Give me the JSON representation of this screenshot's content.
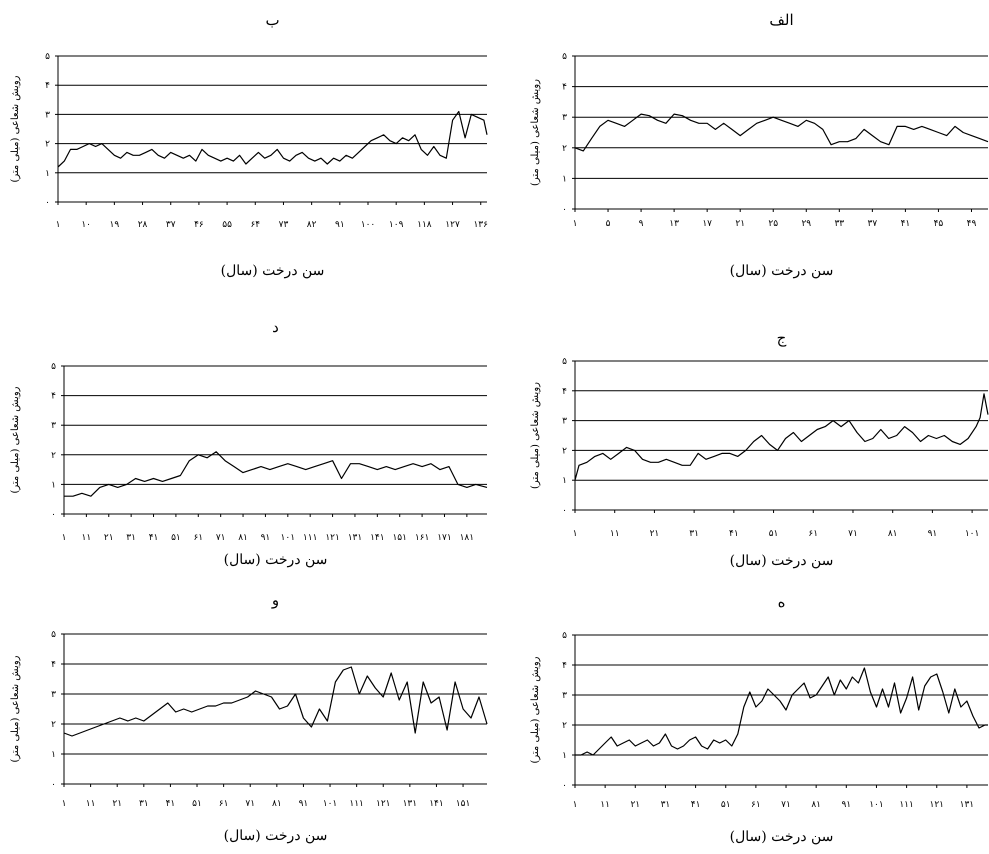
{
  "chart_data": [
    {
      "id": "alef",
      "type": "line",
      "title": "الف",
      "xlabel": "سن درخت (سال)",
      "ylabel": "رویش شعاعی (میلی متر)",
      "ylim": [
        0,
        5
      ],
      "yticks": [
        "۰",
        "۱",
        "۲",
        "۳",
        "۴",
        "۵"
      ],
      "xlim": [
        1,
        51
      ],
      "xticks": [
        "۱",
        "۵",
        "۹",
        "۱۳",
        "۱۷",
        "۲۱",
        "۲۵",
        "۲۹",
        "۳۳",
        "۳۷",
        "۴۱",
        "۴۵",
        "۴۹"
      ],
      "xtick_start": 1,
      "xtick_step": 4,
      "grid": true,
      "x": [
        1,
        2,
        3,
        4,
        5,
        6,
        7,
        8,
        9,
        10,
        11,
        12,
        13,
        14,
        15,
        16,
        17,
        18,
        19,
        20,
        21,
        22,
        23,
        24,
        25,
        26,
        27,
        28,
        29,
        30,
        31,
        32,
        33,
        34,
        35,
        36,
        37,
        38,
        39,
        40,
        41,
        42,
        43,
        44,
        45,
        46,
        47,
        48,
        49,
        50,
        51
      ],
      "values": [
        2.0,
        1.9,
        2.3,
        2.7,
        2.9,
        2.8,
        2.7,
        2.9,
        3.1,
        3.05,
        2.9,
        2.8,
        3.1,
        3.05,
        2.9,
        2.8,
        2.8,
        2.6,
        2.8,
        2.6,
        2.4,
        2.6,
        2.8,
        2.9,
        3.0,
        2.9,
        2.8,
        2.7,
        2.9,
        2.8,
        2.6,
        2.1,
        2.2,
        2.2,
        2.3,
        2.6,
        2.4,
        2.2,
        2.1,
        2.7,
        2.7,
        2.6,
        2.7,
        2.6,
        2.5,
        2.4,
        2.7,
        2.5,
        2.4,
        2.3,
        2.2
      ]
    },
    {
      "id": "be",
      "type": "line",
      "title": "ب",
      "xlabel": "سن درخت (سال)",
      "ylabel": "رویش شعاعی (میلی متر)",
      "ylim": [
        0,
        5
      ],
      "yticks": [
        "۰",
        "۱",
        "۲",
        "۳",
        "۴",
        "۵"
      ],
      "xlim": [
        1,
        138
      ],
      "xticks": [
        "۱",
        "۱۰",
        "۱۹",
        "۲۸",
        "۳۷",
        "۴۶",
        "۵۵",
        "۶۴",
        "۷۳",
        "۸۲",
        "۹۱",
        "۱۰۰",
        "۱۰۹",
        "۱۱۸",
        "۱۲۷",
        "۱۳۶"
      ],
      "xtick_start": 1,
      "xtick_step": 9,
      "grid": true,
      "x": [
        1,
        3,
        5,
        7,
        9,
        11,
        13,
        15,
        17,
        19,
        21,
        23,
        25,
        27,
        29,
        31,
        33,
        35,
        37,
        39,
        41,
        43,
        45,
        47,
        49,
        51,
        53,
        55,
        57,
        59,
        61,
        63,
        65,
        67,
        69,
        71,
        73,
        75,
        77,
        79,
        81,
        83,
        85,
        87,
        89,
        91,
        93,
        95,
        97,
        99,
        101,
        103,
        105,
        107,
        109,
        111,
        113,
        115,
        117,
        119,
        121,
        123,
        125,
        127,
        129,
        131,
        133,
        135,
        137,
        138
      ],
      "values": [
        1.2,
        1.4,
        1.8,
        1.8,
        1.9,
        2.0,
        1.9,
        2.0,
        1.8,
        1.6,
        1.5,
        1.7,
        1.6,
        1.6,
        1.7,
        1.8,
        1.6,
        1.5,
        1.7,
        1.6,
        1.5,
        1.6,
        1.4,
        1.8,
        1.6,
        1.5,
        1.4,
        1.5,
        1.4,
        1.6,
        1.3,
        1.5,
        1.7,
        1.5,
        1.6,
        1.8,
        1.5,
        1.4,
        1.6,
        1.7,
        1.5,
        1.4,
        1.5,
        1.3,
        1.5,
        1.4,
        1.6,
        1.5,
        1.7,
        1.9,
        2.1,
        2.2,
        2.3,
        2.1,
        2.0,
        2.2,
        2.1,
        2.3,
        1.8,
        1.6,
        1.9,
        1.6,
        1.5,
        2.8,
        3.1,
        2.2,
        3.0,
        2.9,
        2.8,
        2.3
      ]
    },
    {
      "id": "jim",
      "type": "line",
      "title": "ج",
      "xlabel": "سن درخت (سال)",
      "ylabel": "رویش شعاعی (میلی متر)",
      "ylim": [
        0,
        5
      ],
      "yticks": [
        "۰",
        "۱",
        "۲",
        "۳",
        "۴",
        "۵"
      ],
      "xlim": [
        1,
        105
      ],
      "xticks": [
        "۱",
        "۱۱",
        "۲۱",
        "۳۱",
        "۴۱",
        "۵۱",
        "۶۱",
        "۷۱",
        "۸۱",
        "۹۱",
        "۱۰۱"
      ],
      "xtick_start": 1,
      "xtick_step": 10,
      "grid": true,
      "x": [
        1,
        2,
        4,
        6,
        8,
        10,
        12,
        14,
        16,
        18,
        20,
        22,
        24,
        26,
        28,
        30,
        32,
        34,
        36,
        38,
        40,
        42,
        44,
        46,
        48,
        50,
        52,
        54,
        56,
        58,
        60,
        62,
        64,
        66,
        68,
        70,
        72,
        74,
        76,
        78,
        80,
        82,
        84,
        86,
        88,
        90,
        92,
        94,
        96,
        98,
        100,
        102,
        103,
        104,
        105
      ],
      "values": [
        1.0,
        1.5,
        1.6,
        1.8,
        1.9,
        1.7,
        1.9,
        2.1,
        2.0,
        1.7,
        1.6,
        1.6,
        1.7,
        1.6,
        1.5,
        1.5,
        1.9,
        1.7,
        1.8,
        1.9,
        1.9,
        1.8,
        2.0,
        2.3,
        2.5,
        2.2,
        2.0,
        2.4,
        2.6,
        2.3,
        2.5,
        2.7,
        2.8,
        3.0,
        2.8,
        3.0,
        2.6,
        2.3,
        2.4,
        2.7,
        2.4,
        2.5,
        2.8,
        2.6,
        2.3,
        2.5,
        2.4,
        2.5,
        2.3,
        2.2,
        2.4,
        2.8,
        3.1,
        3.9,
        3.2
      ]
    },
    {
      "id": "dal",
      "type": "line",
      "title": "د",
      "xlabel": "سن درخت (سال)",
      "ylabel": "رویش شعاعی (میلی متر)",
      "ylim": [
        0,
        5
      ],
      "yticks": [
        "۰",
        "۱",
        "۲",
        "۳",
        "۴",
        "۵"
      ],
      "xlim": [
        1,
        190
      ],
      "xticks": [
        "۱",
        "۱۱",
        "۲۱",
        "۳۱",
        "۴۱",
        "۵۱",
        "۶۱",
        "۷۱",
        "۸۱",
        "۹۱",
        "۱۰۱",
        "۱۱۱",
        "۱۲۱",
        "۱۳۱",
        "۱۴۱",
        "۱۵۱",
        "۱۶۱",
        "۱۷۱",
        "۱۸۱"
      ],
      "xtick_start": 1,
      "xtick_step": 10,
      "grid": true,
      "x": [
        1,
        5,
        9,
        13,
        17,
        21,
        25,
        29,
        33,
        37,
        41,
        45,
        49,
        53,
        57,
        61,
        65,
        69,
        73,
        77,
        81,
        85,
        89,
        93,
        97,
        101,
        105,
        109,
        113,
        117,
        121,
        125,
        129,
        133,
        137,
        141,
        145,
        149,
        153,
        157,
        161,
        165,
        169,
        173,
        177,
        181,
        185,
        190
      ],
      "values": [
        0.6,
        0.6,
        0.7,
        0.6,
        0.9,
        1.0,
        0.9,
        1.0,
        1.2,
        1.1,
        1.2,
        1.1,
        1.2,
        1.3,
        1.8,
        2.0,
        1.9,
        2.1,
        1.8,
        1.6,
        1.4,
        1.5,
        1.6,
        1.5,
        1.6,
        1.7,
        1.6,
        1.5,
        1.6,
        1.7,
        1.8,
        1.2,
        1.7,
        1.7,
        1.6,
        1.5,
        1.6,
        1.5,
        1.6,
        1.7,
        1.6,
        1.7,
        1.5,
        1.6,
        1.0,
        0.9,
        1.0,
        0.9
      ]
    },
    {
      "id": "he",
      "type": "line",
      "title": "ه",
      "xlabel": "سن درخت (سال)",
      "ylabel": "رویش شعاعی (میلی متر)",
      "ylim": [
        0,
        5
      ],
      "yticks": [
        "۰",
        "۱",
        "۲",
        "۳",
        "۴",
        "۵"
      ],
      "xlim": [
        1,
        138
      ],
      "xticks": [
        "۱",
        "۱۱",
        "۲۱",
        "۳۱",
        "۴۱",
        "۵۱",
        "۶۱",
        "۷۱",
        "۸۱",
        "۹۱",
        "۱۰۱",
        "۱۱۱",
        "۱۲۱",
        "۱۳۱"
      ],
      "xtick_start": 1,
      "xtick_step": 10,
      "grid": true,
      "x": [
        1,
        3,
        5,
        7,
        9,
        11,
        13,
        15,
        17,
        19,
        21,
        23,
        25,
        27,
        29,
        31,
        33,
        35,
        37,
        39,
        41,
        43,
        45,
        47,
        49,
        51,
        53,
        55,
        57,
        59,
        61,
        63,
        65,
        67,
        69,
        71,
        73,
        75,
        77,
        79,
        81,
        83,
        85,
        87,
        89,
        91,
        93,
        95,
        97,
        99,
        101,
        103,
        105,
        107,
        109,
        111,
        113,
        115,
        117,
        119,
        121,
        123,
        125,
        127,
        129,
        131,
        133,
        135,
        137,
        138
      ],
      "values": [
        1.0,
        1.0,
        1.1,
        1.0,
        1.2,
        1.4,
        1.6,
        1.3,
        1.4,
        1.5,
        1.3,
        1.4,
        1.5,
        1.3,
        1.4,
        1.7,
        1.3,
        1.2,
        1.3,
        1.5,
        1.6,
        1.3,
        1.2,
        1.5,
        1.4,
        1.5,
        1.3,
        1.7,
        2.6,
        3.1,
        2.6,
        2.8,
        3.2,
        3.0,
        2.8,
        2.5,
        3.0,
        3.2,
        3.4,
        2.9,
        3.0,
        3.3,
        3.6,
        3.0,
        3.5,
        3.2,
        3.6,
        3.4,
        3.9,
        3.1,
        2.6,
        3.2,
        2.6,
        3.4,
        2.4,
        2.9,
        3.6,
        2.5,
        3.3,
        3.6,
        3.7,
        3.1,
        2.4,
        3.2,
        2.6,
        2.8,
        2.3,
        1.9,
        2.0,
        2.0
      ]
    },
    {
      "id": "vav",
      "type": "line",
      "title": "و",
      "xlabel": "سن درخت (سال)",
      "ylabel": "رویش شعاعی (میلی متر)",
      "ylim": [
        0,
        5
      ],
      "yticks": [
        "۰",
        "۱",
        "۲",
        "۳",
        "۴",
        "۵"
      ],
      "xlim": [
        1,
        160
      ],
      "xticks": [
        "۱",
        "۱۱",
        "۲۱",
        "۳۱",
        "۴۱",
        "۵۱",
        "۶۱",
        "۷۱",
        "۸۱",
        "۹۱",
        "۱۰۱",
        "۱۱۱",
        "۱۲۱",
        "۱۳۱",
        "۱۴۱",
        "۱۵۱"
      ],
      "xtick_start": 1,
      "xtick_step": 10,
      "grid": true,
      "x": [
        1,
        4,
        7,
        10,
        13,
        16,
        19,
        22,
        25,
        28,
        31,
        34,
        37,
        40,
        43,
        46,
        49,
        52,
        55,
        58,
        61,
        64,
        67,
        70,
        73,
        76,
        79,
        82,
        85,
        88,
        91,
        94,
        97,
        100,
        103,
        106,
        109,
        112,
        115,
        118,
        121,
        124,
        127,
        130,
        133,
        136,
        139,
        142,
        145,
        148,
        151,
        154,
        157,
        160
      ],
      "values": [
        1.7,
        1.6,
        1.7,
        1.8,
        1.9,
        2.0,
        2.1,
        2.2,
        2.1,
        2.2,
        2.1,
        2.3,
        2.5,
        2.7,
        2.4,
        2.5,
        2.4,
        2.5,
        2.6,
        2.6,
        2.7,
        2.7,
        2.8,
        2.9,
        3.1,
        3.0,
        2.9,
        2.5,
        2.6,
        3.0,
        2.2,
        1.9,
        2.5,
        2.1,
        3.4,
        3.8,
        3.9,
        3.0,
        3.6,
        3.2,
        2.9,
        3.7,
        2.8,
        3.4,
        1.7,
        3.4,
        2.7,
        2.9,
        1.8,
        3.4,
        2.5,
        2.2,
        2.9,
        2.0
      ]
    }
  ]
}
